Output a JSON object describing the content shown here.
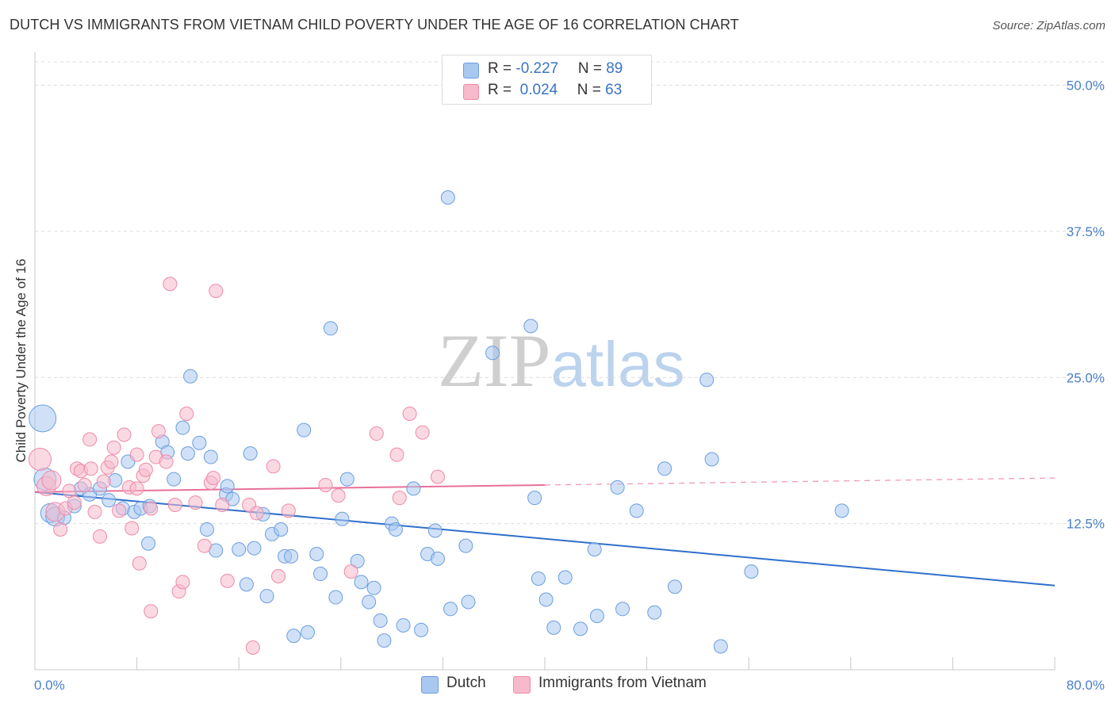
{
  "title": "DUTCH VS IMMIGRANTS FROM VIETNAM CHILD POVERTY UNDER THE AGE OF 16 CORRELATION CHART",
  "source": "Source: ZipAtlas.com",
  "watermark": {
    "zip": "ZIP",
    "atlas": "atlas"
  },
  "legend": {
    "rows": [
      {
        "r_label": "R = ",
        "r_value": "-0.227",
        "n_label": "N = ",
        "n_value": "89",
        "color": "#a9c8f0"
      },
      {
        "r_label": "R = ",
        "r_value": " 0.024",
        "n_label": "N = ",
        "n_value": "63",
        "color": "#f7b9cc"
      }
    ]
  },
  "chart_data": {
    "type": "scatter",
    "title": "DUTCH VS IMMIGRANTS FROM VIETNAM CHILD POVERTY UNDER THE AGE OF 16 CORRELATION CHART",
    "xlabel": "",
    "ylabel": "Child Poverty Under the Age of 16",
    "xlim": [
      0,
      80
    ],
    "ylim": [
      0,
      50
    ],
    "x_tick_labels": [
      "0.0%",
      "80.0%"
    ],
    "y_ticks": [
      12.5,
      25.0,
      37.5,
      50.0
    ],
    "y_tick_labels": [
      "12.5%",
      "25.0%",
      "37.5%",
      "50.0%"
    ],
    "grid": "horizontal dashed",
    "legend_position": "top-center",
    "series": [
      {
        "name": "Dutch",
        "color": "#a9c8f0",
        "edge": "#6a9ee0",
        "trend": {
          "x": [
            0,
            80
          ],
          "y": [
            15.2,
            7.2
          ],
          "color": "#2f6fcc"
        },
        "points": [
          [
            0.6,
            21.5,
            5
          ],
          [
            0.8,
            16.3,
            4
          ],
          [
            1.2,
            13.4,
            3
          ],
          [
            1.6,
            13.1,
            3
          ],
          [
            2.3,
            13.0,
            2
          ],
          [
            3.1,
            14.0,
            2
          ],
          [
            3.6,
            15.5,
            2
          ],
          [
            4.3,
            15.0,
            2
          ],
          [
            5.1,
            15.5,
            2
          ],
          [
            5.8,
            14.5,
            2
          ],
          [
            6.3,
            16.2,
            2
          ],
          [
            6.9,
            13.8,
            2
          ],
          [
            7.3,
            17.8,
            2
          ],
          [
            7.8,
            13.5,
            2
          ],
          [
            8.3,
            13.8,
            2
          ],
          [
            9.0,
            14.0,
            2
          ],
          [
            8.9,
            10.8,
            2
          ],
          [
            10.0,
            19.5,
            2
          ],
          [
            10.4,
            18.6,
            2
          ],
          [
            10.9,
            16.3,
            2
          ],
          [
            11.6,
            20.7,
            2
          ],
          [
            12.2,
            25.1,
            2
          ],
          [
            12.0,
            18.5,
            2
          ],
          [
            12.9,
            19.4,
            2
          ],
          [
            13.8,
            18.2,
            2
          ],
          [
            13.5,
            12.0,
            2
          ],
          [
            14.2,
            10.2,
            2
          ],
          [
            15.0,
            15.0,
            2
          ],
          [
            15.1,
            15.7,
            2
          ],
          [
            15.5,
            14.6,
            2
          ],
          [
            16.0,
            10.3,
            2
          ],
          [
            16.6,
            7.3,
            2
          ],
          [
            16.9,
            18.5,
            2
          ],
          [
            17.2,
            10.4,
            2
          ],
          [
            17.9,
            13.3,
            2
          ],
          [
            18.2,
            6.3,
            2
          ],
          [
            18.6,
            11.6,
            2
          ],
          [
            19.3,
            12.0,
            2
          ],
          [
            19.6,
            9.7,
            2
          ],
          [
            20.1,
            9.7,
            2
          ],
          [
            20.3,
            2.9,
            2
          ],
          [
            21.1,
            20.5,
            2
          ],
          [
            21.4,
            3.2,
            2
          ],
          [
            22.1,
            9.9,
            2
          ],
          [
            22.4,
            8.2,
            2
          ],
          [
            23.2,
            29.2,
            2
          ],
          [
            23.6,
            6.2,
            2
          ],
          [
            24.1,
            12.9,
            2
          ],
          [
            24.5,
            16.3,
            2
          ],
          [
            25.3,
            9.3,
            2
          ],
          [
            25.6,
            7.5,
            2
          ],
          [
            26.2,
            5.8,
            2
          ],
          [
            26.6,
            7.0,
            2
          ],
          [
            27.1,
            4.2,
            2
          ],
          [
            27.4,
            2.5,
            2
          ],
          [
            28.0,
            12.5,
            2
          ],
          [
            28.3,
            12.0,
            2
          ],
          [
            28.9,
            3.8,
            2
          ],
          [
            29.7,
            15.5,
            2
          ],
          [
            30.3,
            3.4,
            2
          ],
          [
            30.8,
            9.9,
            2
          ],
          [
            31.6,
            9.5,
            2
          ],
          [
            31.4,
            11.9,
            2
          ],
          [
            32.4,
            40.4,
            2
          ],
          [
            32.6,
            5.2,
            2
          ],
          [
            33.8,
            10.6,
            2
          ],
          [
            34.0,
            5.8,
            2
          ],
          [
            35.9,
            27.1,
            2
          ],
          [
            38.9,
            29.4,
            2
          ],
          [
            39.2,
            14.7,
            2
          ],
          [
            39.5,
            7.8,
            2
          ],
          [
            40.1,
            6.0,
            2
          ],
          [
            40.7,
            3.6,
            2
          ],
          [
            41.6,
            7.9,
            2
          ],
          [
            42.8,
            3.5,
            2
          ],
          [
            43.9,
            10.3,
            2
          ],
          [
            44.1,
            4.6,
            2
          ],
          [
            45.7,
            15.6,
            2
          ],
          [
            46.1,
            5.2,
            2
          ],
          [
            47.2,
            13.6,
            2
          ],
          [
            48.6,
            4.9,
            2
          ],
          [
            49.4,
            17.2,
            2
          ],
          [
            50.2,
            7.1,
            2
          ],
          [
            52.7,
            24.8,
            2
          ],
          [
            53.1,
            18.0,
            2
          ],
          [
            53.8,
            2.0,
            2
          ],
          [
            56.2,
            8.4,
            2
          ],
          [
            63.3,
            13.6,
            2
          ]
        ]
      },
      {
        "name": "Immigrants from Vietnam",
        "color": "#f7b9cc",
        "edge": "#ee8aa8",
        "trend": {
          "x": [
            0,
            40
          ],
          "y": [
            15.2,
            15.8
          ],
          "x_dashed_to": 80,
          "y_dashed_to": 16.4,
          "color": "#e8709a"
        },
        "points": [
          [
            0.4,
            18.0,
            4
          ],
          [
            0.9,
            15.7,
            3
          ],
          [
            1.3,
            16.2,
            3
          ],
          [
            1.6,
            13.5,
            3
          ],
          [
            2.0,
            12.0,
            2
          ],
          [
            2.4,
            13.8,
            2
          ],
          [
            2.7,
            15.3,
            2
          ],
          [
            3.1,
            14.3,
            2
          ],
          [
            3.3,
            17.2,
            2
          ],
          [
            3.6,
            17.0,
            2
          ],
          [
            3.9,
            15.8,
            2
          ],
          [
            4.4,
            17.2,
            2
          ],
          [
            4.3,
            19.7,
            2
          ],
          [
            4.7,
            13.5,
            2
          ],
          [
            5.1,
            11.4,
            2
          ],
          [
            5.4,
            16.1,
            2
          ],
          [
            5.7,
            17.3,
            2
          ],
          [
            6.0,
            17.8,
            2
          ],
          [
            6.2,
            19.0,
            2
          ],
          [
            6.6,
            13.6,
            2
          ],
          [
            7.0,
            20.1,
            2
          ],
          [
            7.4,
            15.6,
            2
          ],
          [
            7.6,
            12.1,
            2
          ],
          [
            8.0,
            18.4,
            2
          ],
          [
            8.0,
            15.5,
            2
          ],
          [
            8.2,
            9.1,
            2
          ],
          [
            8.5,
            16.6,
            2
          ],
          [
            8.7,
            17.1,
            2
          ],
          [
            9.1,
            13.8,
            2
          ],
          [
            9.1,
            5.0,
            2
          ],
          [
            9.5,
            18.2,
            2
          ],
          [
            9.7,
            20.4,
            2
          ],
          [
            10.3,
            17.8,
            2
          ],
          [
            10.6,
            33.0,
            2
          ],
          [
            11.0,
            14.1,
            2
          ],
          [
            11.3,
            6.7,
            2
          ],
          [
            11.6,
            7.5,
            2
          ],
          [
            11.9,
            21.9,
            2
          ],
          [
            12.6,
            14.3,
            2
          ],
          [
            13.3,
            10.6,
            2
          ],
          [
            13.8,
            16.0,
            2
          ],
          [
            14.0,
            16.4,
            2
          ],
          [
            14.2,
            32.4,
            2
          ],
          [
            14.7,
            14.1,
            2
          ],
          [
            15.1,
            7.6,
            2
          ],
          [
            16.8,
            14.1,
            2
          ],
          [
            17.1,
            1.9,
            2
          ],
          [
            17.4,
            13.4,
            2
          ],
          [
            18.7,
            17.4,
            2
          ],
          [
            19.1,
            8.0,
            2
          ],
          [
            19.9,
            13.6,
            2
          ],
          [
            22.8,
            15.8,
            2
          ],
          [
            23.8,
            14.9,
            2
          ],
          [
            24.8,
            8.4,
            2
          ],
          [
            26.8,
            20.2,
            2
          ],
          [
            28.4,
            18.4,
            2
          ],
          [
            28.6,
            14.7,
            2
          ],
          [
            29.4,
            21.9,
            2
          ],
          [
            30.4,
            20.3,
            2
          ],
          [
            31.6,
            16.5,
            2
          ]
        ]
      }
    ]
  }
}
